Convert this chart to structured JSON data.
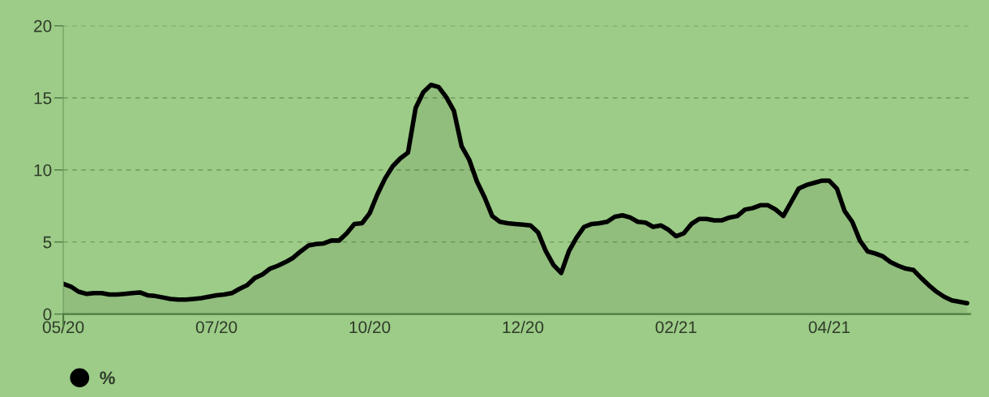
{
  "chart_data": {
    "type": "area",
    "categories": [
      "05/20",
      null,
      null,
      null,
      null,
      null,
      null,
      null,
      null,
      null,
      null,
      null,
      null,
      null,
      null,
      null,
      null,
      null,
      null,
      null,
      "07/20",
      null,
      null,
      null,
      null,
      null,
      null,
      null,
      null,
      null,
      null,
      null,
      null,
      null,
      null,
      null,
      null,
      null,
      null,
      null,
      "10/20",
      null,
      null,
      null,
      null,
      null,
      null,
      null,
      null,
      null,
      null,
      null,
      null,
      null,
      null,
      null,
      null,
      null,
      null,
      null,
      "12/20",
      null,
      null,
      null,
      null,
      null,
      null,
      null,
      null,
      null,
      null,
      null,
      null,
      null,
      null,
      null,
      null,
      null,
      null,
      null,
      "02/21",
      null,
      null,
      null,
      null,
      null,
      null,
      null,
      null,
      null,
      null,
      null,
      null,
      null,
      null,
      null,
      null,
      null,
      null,
      null,
      "04/21",
      null,
      null,
      null,
      null,
      null,
      null,
      null,
      null,
      null,
      null,
      null,
      null,
      null,
      null,
      null,
      null,
      null,
      null
    ],
    "series": [
      {
        "name": "%",
        "color": "#000000",
        "values": [
          2.1,
          1.9,
          1.55,
          1.4,
          1.45,
          1.45,
          1.35,
          1.35,
          1.4,
          1.45,
          1.5,
          1.3,
          1.25,
          1.15,
          1.05,
          1.0,
          1.0,
          1.05,
          1.1,
          1.2,
          1.3,
          1.35,
          1.45,
          1.75,
          2.0,
          2.5,
          2.75,
          3.15,
          3.35,
          3.6,
          3.9,
          4.35,
          4.75,
          4.85,
          4.9,
          5.1,
          5.1,
          5.6,
          6.25,
          6.3,
          7.0,
          8.3,
          9.4,
          10.25,
          10.8,
          11.2,
          14.3,
          15.4,
          15.9,
          15.75,
          15.05,
          14.1,
          11.65,
          10.7,
          9.2,
          8.1,
          6.8,
          6.4,
          6.3,
          6.25,
          6.2,
          6.15,
          5.65,
          4.35,
          3.4,
          2.85,
          4.35,
          5.3,
          6.05,
          6.25,
          6.3,
          6.4,
          6.75,
          6.85,
          6.7,
          6.4,
          6.35,
          6.05,
          6.15,
          5.85,
          5.4,
          5.6,
          6.25,
          6.6,
          6.6,
          6.5,
          6.5,
          6.7,
          6.8,
          7.25,
          7.35,
          7.55,
          7.55,
          7.25,
          6.8,
          7.75,
          8.7,
          8.95,
          9.1,
          9.25,
          9.25,
          8.7,
          7.15,
          6.4,
          5.1,
          4.35,
          4.2,
          4.0,
          3.6,
          3.35,
          3.15,
          3.05,
          2.5,
          2.0,
          1.55,
          1.2,
          0.95,
          0.85,
          0.75
        ]
      }
    ],
    "ylim": [
      0,
      20
    ],
    "yticks": [
      0,
      5,
      10,
      15,
      20
    ],
    "grid": "y",
    "legend": "bottom left",
    "marker": "none",
    "line_style": "solid"
  }
}
